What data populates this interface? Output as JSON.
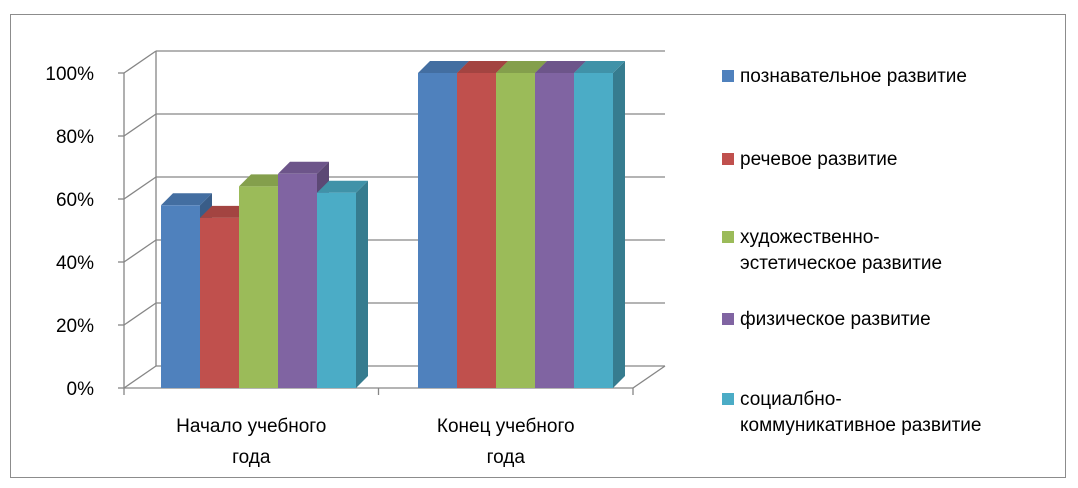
{
  "chart_data": {
    "type": "bar",
    "categories": [
      "Начало учебного года",
      "Конец учебного года"
    ],
    "category_lines": [
      [
        "Начало учебного",
        "года"
      ],
      [
        "Конец учебного",
        "года"
      ]
    ],
    "series": [
      {
        "name": "познавательное развитие",
        "values": [
          58,
          100
        ],
        "color": "#4F81BD"
      },
      {
        "name": "речевое развитие",
        "values": [
          54,
          100
        ],
        "color": "#C0504D"
      },
      {
        "name": "художественно-эстетическое развитие",
        "name_lines": [
          "художественно-",
          "эстетическое развитие"
        ],
        "values": [
          64,
          100
        ],
        "color": "#9BBB59"
      },
      {
        "name": "физическое развитие",
        "values": [
          68,
          100
        ],
        "color": "#8064A2"
      },
      {
        "name": "социалбно-коммуникативное развитие",
        "name_lines": [
          "социалбно-",
          "коммуникативное развитие"
        ],
        "values": [
          62,
          100
        ],
        "color": "#4BACC6"
      }
    ],
    "yticks": [
      "0%",
      "20%",
      "40%",
      "60%",
      "80%",
      "100%"
    ],
    "ylim": [
      0,
      100
    ],
    "grid": true,
    "legend": "right",
    "style": "3d-clustered-column"
  }
}
